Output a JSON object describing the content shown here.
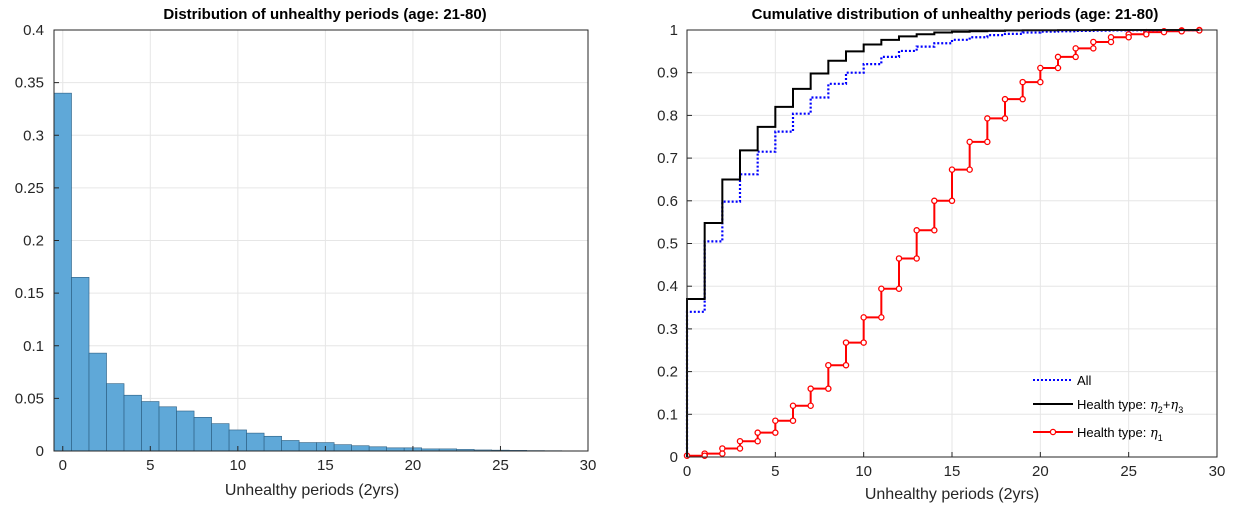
{
  "chart_data": [
    {
      "type": "bar",
      "title": "Distribution of unhealthy periods (age: 21-80)",
      "xlabel": "Unhealthy periods (2yrs)",
      "ylabel": "",
      "xlim": [
        -0.5,
        30
      ],
      "ylim": [
        0,
        0.4
      ],
      "xticks": [
        "0",
        "5",
        "10",
        "15",
        "20",
        "25",
        "30"
      ],
      "yticks": [
        "0",
        "0.05",
        "0.1",
        "0.15",
        "0.2",
        "0.25",
        "0.3",
        "0.35",
        "0.4"
      ],
      "grid": true,
      "bar_color": "#5fa8d8",
      "x": [
        0,
        1,
        2,
        3,
        4,
        5,
        6,
        7,
        8,
        9,
        10,
        11,
        12,
        13,
        14,
        15,
        16,
        17,
        18,
        19,
        20,
        21,
        22,
        23,
        24,
        25,
        26,
        27,
        28,
        29
      ],
      "values": [
        0.34,
        0.165,
        0.093,
        0.064,
        0.053,
        0.047,
        0.042,
        0.038,
        0.032,
        0.026,
        0.02,
        0.017,
        0.014,
        0.01,
        0.008,
        0.008,
        0.006,
        0.005,
        0.004,
        0.003,
        0.003,
        0.002,
        0.002,
        0.0015,
        0.001,
        0.0008,
        0.0006,
        0.0004,
        0.0003,
        0.0002
      ]
    },
    {
      "type": "line",
      "title": "Cumulative distribution of unhealthy periods (age: 21-80)",
      "xlabel": "Unhealthy periods (2yrs)",
      "ylabel": "",
      "xlim": [
        0,
        30
      ],
      "ylim": [
        0,
        1
      ],
      "xticks": [
        "0",
        "5",
        "10",
        "15",
        "20",
        "25",
        "30"
      ],
      "yticks": [
        "0",
        "0.1",
        "0.2",
        "0.3",
        "0.4",
        "0.5",
        "0.6",
        "0.7",
        "0.8",
        "0.9",
        "1"
      ],
      "grid": true,
      "legend_position": "bottom-right",
      "series": [
        {
          "name": "All",
          "color": "#0000ff",
          "style": "dotted",
          "markers": false,
          "x": [
            0,
            1,
            2,
            3,
            4,
            5,
            6,
            7,
            8,
            9,
            10,
            11,
            12,
            13,
            14,
            15,
            16,
            17,
            18,
            19,
            20,
            21,
            22,
            23,
            24,
            25,
            26,
            27,
            28,
            29
          ],
          "y": [
            0.34,
            0.505,
            0.598,
            0.662,
            0.715,
            0.762,
            0.804,
            0.842,
            0.874,
            0.9,
            0.92,
            0.937,
            0.951,
            0.961,
            0.969,
            0.977,
            0.983,
            0.988,
            0.991,
            0.994,
            0.996,
            0.997,
            0.998,
            0.9985,
            0.999,
            0.9995,
            0.9997,
            0.9998,
            0.9999,
            1.0
          ]
        },
        {
          "name": "Health type: η2+η3",
          "label_parts": [
            "Health type: ",
            "η",
            "2",
            "+",
            "η",
            "3"
          ],
          "color": "#000000",
          "style": "solid",
          "markers": false,
          "x": [
            0,
            1,
            2,
            3,
            4,
            5,
            6,
            7,
            8,
            9,
            10,
            11,
            12,
            13,
            14,
            15,
            16,
            17,
            18,
            19,
            20,
            21,
            22,
            23,
            24,
            25,
            26,
            27,
            28,
            29
          ],
          "y": [
            0.37,
            0.548,
            0.65,
            0.718,
            0.773,
            0.82,
            0.862,
            0.898,
            0.928,
            0.95,
            0.966,
            0.977,
            0.985,
            0.99,
            0.994,
            0.996,
            0.997,
            0.998,
            0.999,
            0.9993,
            0.9995,
            0.9997,
            0.9998,
            0.9999,
            1.0,
            1.0,
            1.0,
            1.0,
            1.0,
            1.0
          ]
        },
        {
          "name": "Health type: η1",
          "label_parts": [
            "Health type: ",
            "η",
            "1"
          ],
          "color": "#ff0000",
          "style": "solid",
          "markers": true,
          "x": [
            0,
            1,
            2,
            3,
            4,
            5,
            6,
            7,
            8,
            9,
            10,
            11,
            12,
            13,
            14,
            15,
            16,
            17,
            18,
            19,
            20,
            21,
            22,
            23,
            24,
            25,
            26,
            27,
            28,
            29
          ],
          "y": [
            0.003,
            0.008,
            0.02,
            0.037,
            0.057,
            0.085,
            0.12,
            0.16,
            0.215,
            0.268,
            0.327,
            0.394,
            0.465,
            0.531,
            0.6,
            0.673,
            0.738,
            0.793,
            0.838,
            0.878,
            0.911,
            0.937,
            0.957,
            0.972,
            0.983,
            0.99,
            0.995,
            0.997,
            0.999,
            1.0
          ]
        }
      ]
    }
  ]
}
